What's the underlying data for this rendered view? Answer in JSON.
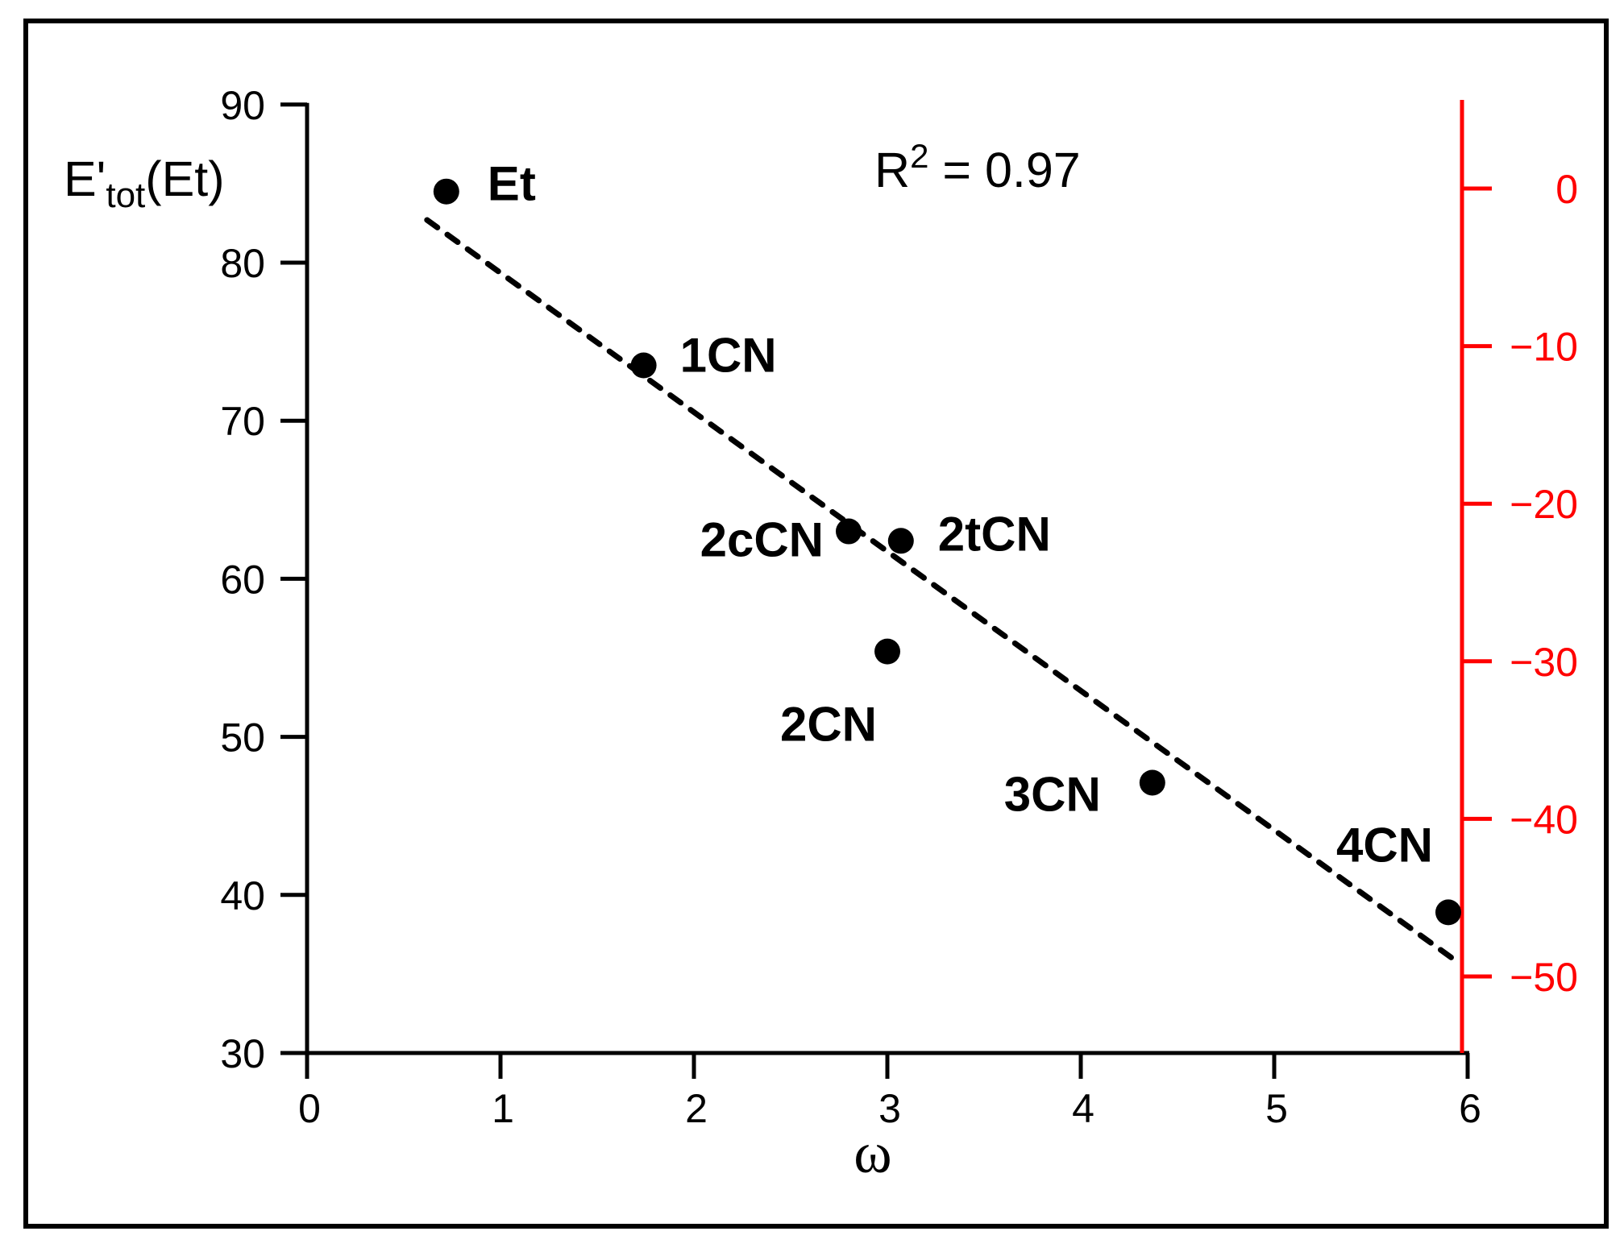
{
  "chart_data": {
    "type": "scatter",
    "title": "",
    "xlabel": "ω",
    "ylabel": "E'tot(Et)",
    "ylabel_parts": {
      "main": "E'",
      "sub": "tot",
      "tail": "(Et)"
    },
    "xlim": [
      0,
      6
    ],
    "ylim": [
      30,
      90
    ],
    "x_ticks": [
      0,
      1,
      2,
      3,
      4,
      5,
      6
    ],
    "y_ticks": [
      30,
      40,
      50,
      60,
      70,
      80,
      90
    ],
    "y2_ticks": [
      0,
      -10,
      -20,
      -30,
      -40,
      -50
    ],
    "y2_tick_labels": [
      "0",
      "−10",
      "−20",
      "−30",
      "−40",
      "−50"
    ],
    "y2_color": "#ff0000",
    "y2lim": [
      -55,
      5.6
    ],
    "grid": false,
    "legend": null,
    "annotation": {
      "text_main": "R",
      "text_sup": "2",
      "text_tail": " = 0.97",
      "r_squared": 0.97
    },
    "points": [
      {
        "label": "Et",
        "x": 0.72,
        "y": 84.5
      },
      {
        "label": "1CN",
        "x": 1.74,
        "y": 73.5
      },
      {
        "label": "2cCN",
        "x": 2.8,
        "y": 63.0
      },
      {
        "label": "2tCN",
        "x": 3.07,
        "y": 62.4
      },
      {
        "label": "2CN",
        "x": 3.0,
        "y": 55.4
      },
      {
        "label": "3CN",
        "x": 4.37,
        "y": 47.1
      },
      {
        "label": "4CN",
        "x": 5.9,
        "y": 38.9
      }
    ],
    "fit_line": {
      "style": "dashed",
      "x": [
        0.62,
        5.92
      ],
      "y": [
        82.7,
        36.0
      ]
    }
  }
}
